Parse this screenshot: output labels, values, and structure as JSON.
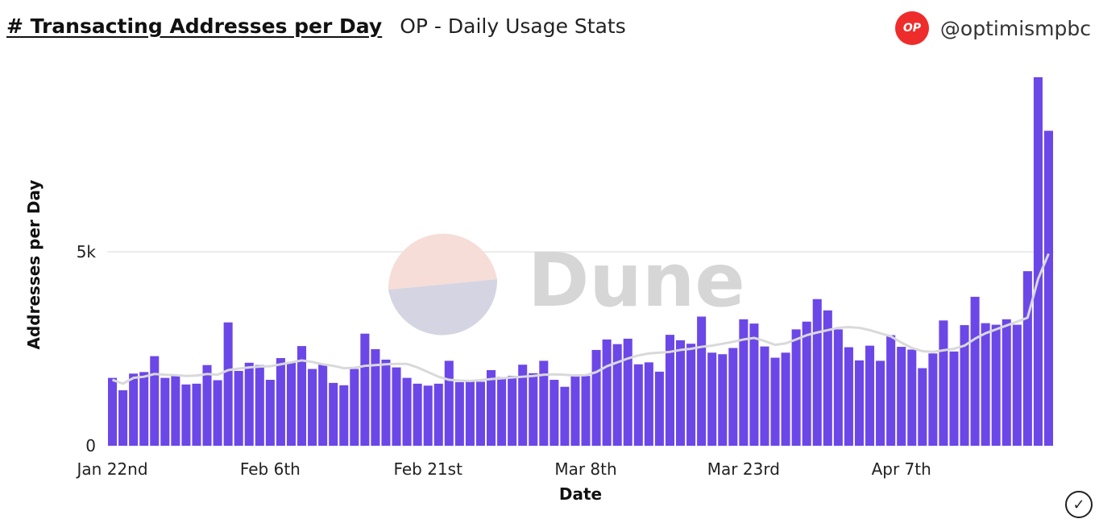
{
  "header": {
    "title": "# Transacting Addresses per Day",
    "subtitle": "OP - Daily Usage Stats"
  },
  "user": {
    "logo_text": "OP",
    "handle": "@optimismpbc"
  },
  "watermark": {
    "text": "Dune"
  },
  "status": {
    "check_icon": "✓"
  },
  "colors": {
    "bar": "#6c47e8",
    "moving_average": "#d9d9d9",
    "grid": "#e6e6e6",
    "logo": "#ee2c2c"
  },
  "chart_data": {
    "type": "bar",
    "xlabel": "Date",
    "ylabel": "Addresses per Day",
    "x_tick_labels": [
      "Jan 22nd",
      "Feb 6th",
      "Feb 21st",
      "Mar 8th",
      "Mar 23rd",
      "Apr 7th"
    ],
    "x_tick_positions": [
      0,
      15,
      30,
      45,
      60,
      75
    ],
    "y_ticks": [
      {
        "value": 0,
        "label": "0"
      },
      {
        "value": 5000,
        "label": "5k"
      }
    ],
    "ylim": [
      0,
      9500
    ],
    "grid": true,
    "series": [
      {
        "type": "bar",
        "values": [
          1750,
          1430,
          1860,
          1900,
          2310,
          1750,
          1810,
          1580,
          1600,
          2080,
          1690,
          3180,
          1930,
          2140,
          2080,
          1700,
          2260,
          2160,
          2570,
          1980,
          2090,
          1620,
          1560,
          1980,
          2890,
          2490,
          2220,
          2020,
          1750,
          1600,
          1550,
          1600,
          2190,
          1640,
          1650,
          1650,
          1950,
          1770,
          1800,
          2090,
          1870,
          2190,
          1700,
          1520,
          1840,
          1800,
          2470,
          2740,
          2620,
          2760,
          2100,
          2150,
          1910,
          2860,
          2720,
          2630,
          3330,
          2400,
          2360,
          2520,
          3260,
          3150,
          2560,
          2270,
          2400,
          3000,
          3200,
          3780,
          3490,
          3000,
          2540,
          2200,
          2580,
          2190,
          2850,
          2550,
          2480,
          2000,
          2380,
          3230,
          2430,
          3110,
          3840,
          3160,
          3120,
          3260,
          3120,
          4500,
          9500,
          8120
        ]
      },
      {
        "type": "line",
        "values": [
          1700,
          1600,
          1750,
          1780,
          1850,
          1830,
          1820,
          1800,
          1810,
          1850,
          1830,
          1950,
          1990,
          2020,
          2040,
          2050,
          2100,
          2150,
          2200,
          2160,
          2100,
          2060,
          2000,
          2010,
          2060,
          2080,
          2100,
          2110,
          2110,
          2020,
          1900,
          1780,
          1700,
          1680,
          1670,
          1690,
          1720,
          1740,
          1760,
          1780,
          1800,
          1830,
          1840,
          1830,
          1810,
          1820,
          1900,
          2050,
          2150,
          2250,
          2330,
          2380,
          2400,
          2420,
          2470,
          2500,
          2550,
          2580,
          2630,
          2680,
          2740,
          2780,
          2700,
          2600,
          2640,
          2740,
          2850,
          2920,
          2980,
          3040,
          3060,
          3040,
          2980,
          2900,
          2820,
          2660,
          2520,
          2440,
          2420,
          2460,
          2500,
          2580,
          2760,
          2900,
          3000,
          3100,
          3200,
          3300,
          4300,
          4950
        ]
      }
    ]
  }
}
